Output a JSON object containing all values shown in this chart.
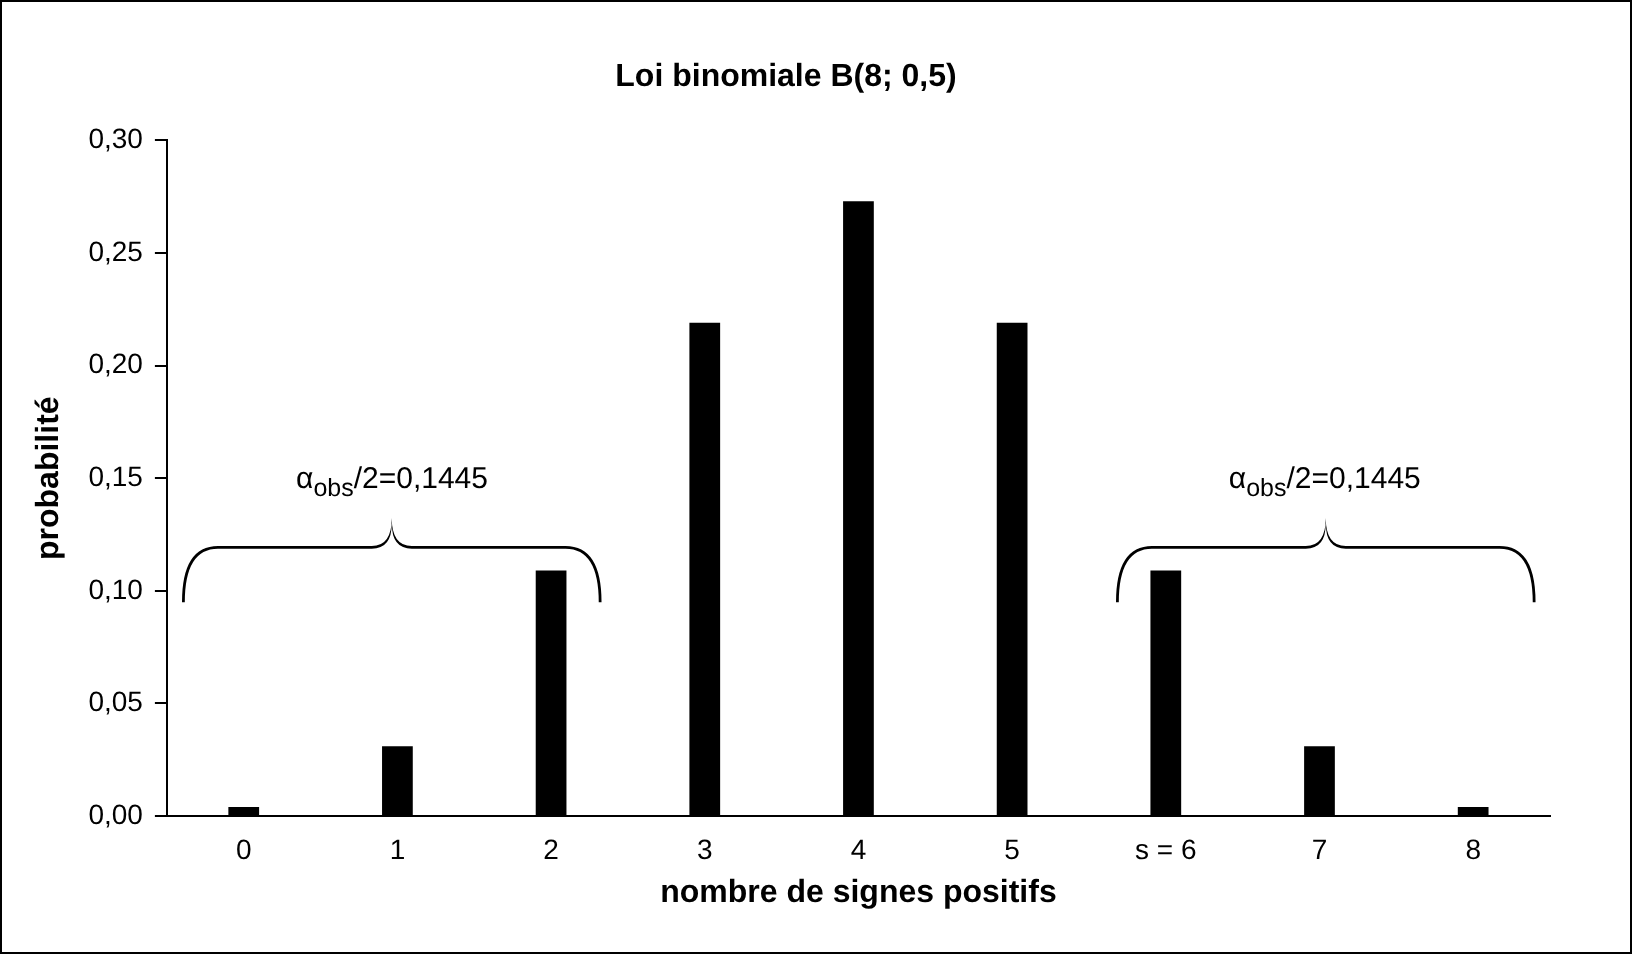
{
  "chart_data": {
    "type": "bar",
    "title": "Loi binomiale B(8; 0,5)",
    "xlabel": "nombre de signes positifs",
    "ylabel": "probabilité",
    "categories": [
      "0",
      "1",
      "2",
      "3",
      "4",
      "5",
      "s = 6",
      "7",
      "8"
    ],
    "values": [
      0.004,
      0.031,
      0.109,
      0.219,
      0.273,
      0.219,
      0.109,
      0.031,
      0.004
    ],
    "color": "#000000",
    "ylim": [
      0,
      0.3
    ],
    "yticks": [
      {
        "value": 0,
        "label": "0,00"
      },
      {
        "value": 0.05,
        "label": "0,05"
      },
      {
        "value": 0.1,
        "label": "0,10"
      },
      {
        "value": 0.15,
        "label": "0,15"
      },
      {
        "value": 0.2,
        "label": "0,20"
      },
      {
        "value": 0.25,
        "label": "0,25"
      },
      {
        "value": 0.3,
        "label": "0,30"
      }
    ],
    "annotations": [
      "α$_{obs}$/2=0,1445",
      "α$_{obs}$/2=0,1445"
    ]
  }
}
